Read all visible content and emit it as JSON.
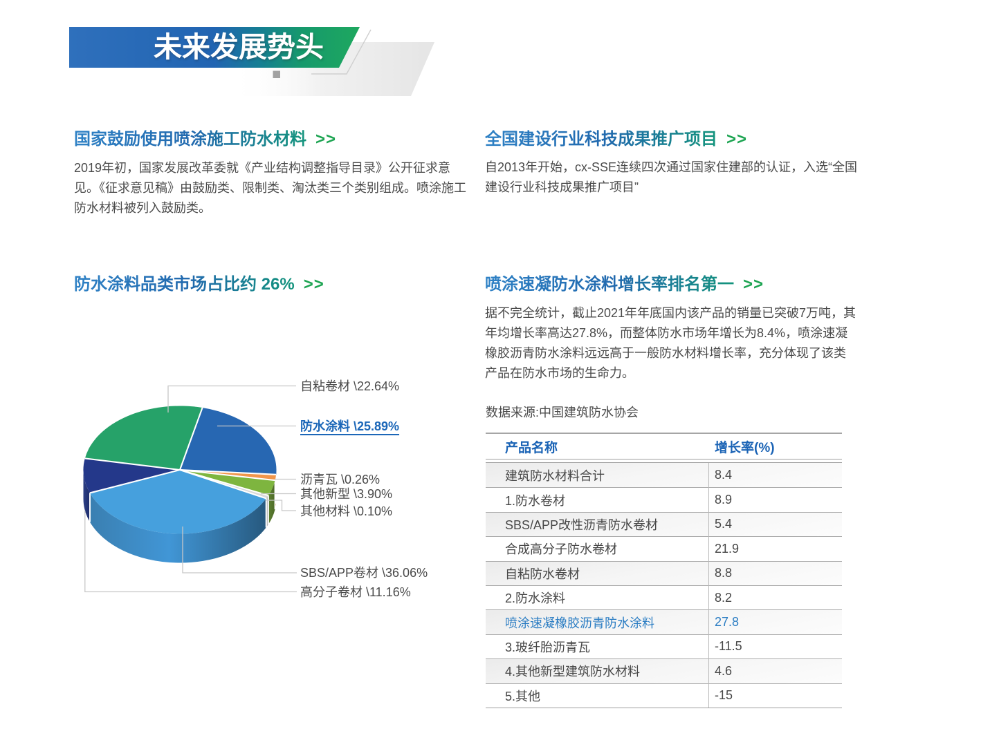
{
  "banner": {
    "title": "未来发展势头"
  },
  "colors": {
    "banner_gradient": [
      "#2f70bc",
      "#2164b2",
      "#157f92",
      "#16996c",
      "#1ea85f"
    ],
    "heading_gradient": [
      "#2e81c5",
      "#13947c"
    ],
    "arrow_green": "#1da452",
    "body_text": "#4a4a4a",
    "table_header_blue": "#1a63b5",
    "highlight_blue": "#2b7dc3"
  },
  "sections": {
    "s1": {
      "title": "国家鼓励使用喷涂施工防水材料",
      "arrow": ">>",
      "body": [
        "2019年初，国家发展改革委就《产业结构调整指导目录》公开征求意",
        "见。《征求意见稿》由鼓励类、限制类、淘汰类三个类别组成。喷涂施工",
        "防水材料被列入鼓励类。"
      ]
    },
    "s2": {
      "title": "全国建设行业科技成果推广项目",
      "arrow": ">>",
      "body": [
        "自2013年开始，cx-SSE连续四次通过国家住建部的认证，入选“全国",
        "建设行业科技成果推广项目”"
      ]
    },
    "s3": {
      "arrow": ">>"
    },
    "s4": {
      "title": "喷涂速凝防水涂料增长率排名第一",
      "arrow": ">>",
      "body": [
        "据不完全统计，截止2021年年底国内该产品的销量已突破7万吨，其",
        "年均增长率高达27.8%，而整体防水市场年增长为8.4%，喷涂速凝",
        "橡胶沥青防水涂料远远高于一般防水材料增长率，充分体现了该类",
        "产品在防水市场的生命力。"
      ],
      "datasource": "数据来源:中国建筑防水协会"
    }
  },
  "chart_data": {
    "type": "pie",
    "title": "防水涂料品类市场占比约 26%",
    "legend_position": "right",
    "slices": [
      {
        "name": "防水涂料",
        "value": 25.89,
        "display": "防水涂料 \\25.89%",
        "color": "#2767b2",
        "wall": [
          "#2160a6",
          "#1c4f8c"
        ],
        "start": 13.5,
        "end": 94.2,
        "highlight": true
      },
      {
        "name": "沥青瓦",
        "value": 0.26,
        "display": "沥青瓦 \\0.26%",
        "color": "#f0964b",
        "wall": [
          "#d37d33",
          "#c0702c"
        ],
        "start": 94.2,
        "end": 99.4
      },
      {
        "name": "其他新型",
        "value": 3.9,
        "display": "其他新型 \\3.90%",
        "color": "#7eb53f",
        "wall": [
          "#5d8030",
          "#4d6a28"
        ],
        "start": 99.4,
        "end": 113.6
      },
      {
        "name": "其他材料",
        "value": 0.1,
        "display": "其他材料 \\0.10%",
        "color": "#d8d8d8",
        "wall": [
          "#bdbdbd",
          "#ababab"
        ],
        "start": 113.6,
        "end": 116.6
      },
      {
        "name": "SBS/APP卷材",
        "value": 36.06,
        "display": "SBS/APP卷材 \\36.06%",
        "color": "#46a0dd",
        "wall": [
          "#3a7fb1",
          "#4196d6",
          "#27597e"
        ],
        "start": 116.6,
        "end": 248.8
      },
      {
        "name": "高分子卷材",
        "value": 11.16,
        "display": "高分子卷材 \\11.16%",
        "color": "#24388a",
        "wall": [
          "#2d3f85",
          "#1d2c6b"
        ],
        "start": 248.8,
        "end": 280.3
      },
      {
        "name": "自粘卷材",
        "value": 22.64,
        "display": "自粘卷材 \\22.64%",
        "color": "#26a269",
        "wall": [
          "#1f8a58",
          "#1f8a58"
        ],
        "start": 280.3,
        "end": 373.5
      }
    ]
  },
  "table": {
    "headers": [
      "产品名称",
      "增长率(%)"
    ],
    "rows": [
      {
        "name": "建筑防水材料合计",
        "value": "8.4"
      },
      {
        "name": "1.防水卷材",
        "value": "8.9"
      },
      {
        "name": "SBS/APP改性沥青防水卷材",
        "value": "5.4"
      },
      {
        "name": "合成高分子防水卷材",
        "value": "21.9"
      },
      {
        "name": "自粘防水卷材",
        "value": "8.8"
      },
      {
        "name": "2.防水涂料",
        "value": "8.2"
      },
      {
        "name": "喷涂速凝橡胶沥青防水涂料",
        "value": "27.8"
      },
      {
        "name": "3.玻纤胎沥青瓦",
        "value": "-11.5"
      },
      {
        "name": "4.其他新型建筑防水材料",
        "value": "4.6"
      },
      {
        "name": "5.其他",
        "value": "-15"
      }
    ],
    "highlight_row": 6
  }
}
